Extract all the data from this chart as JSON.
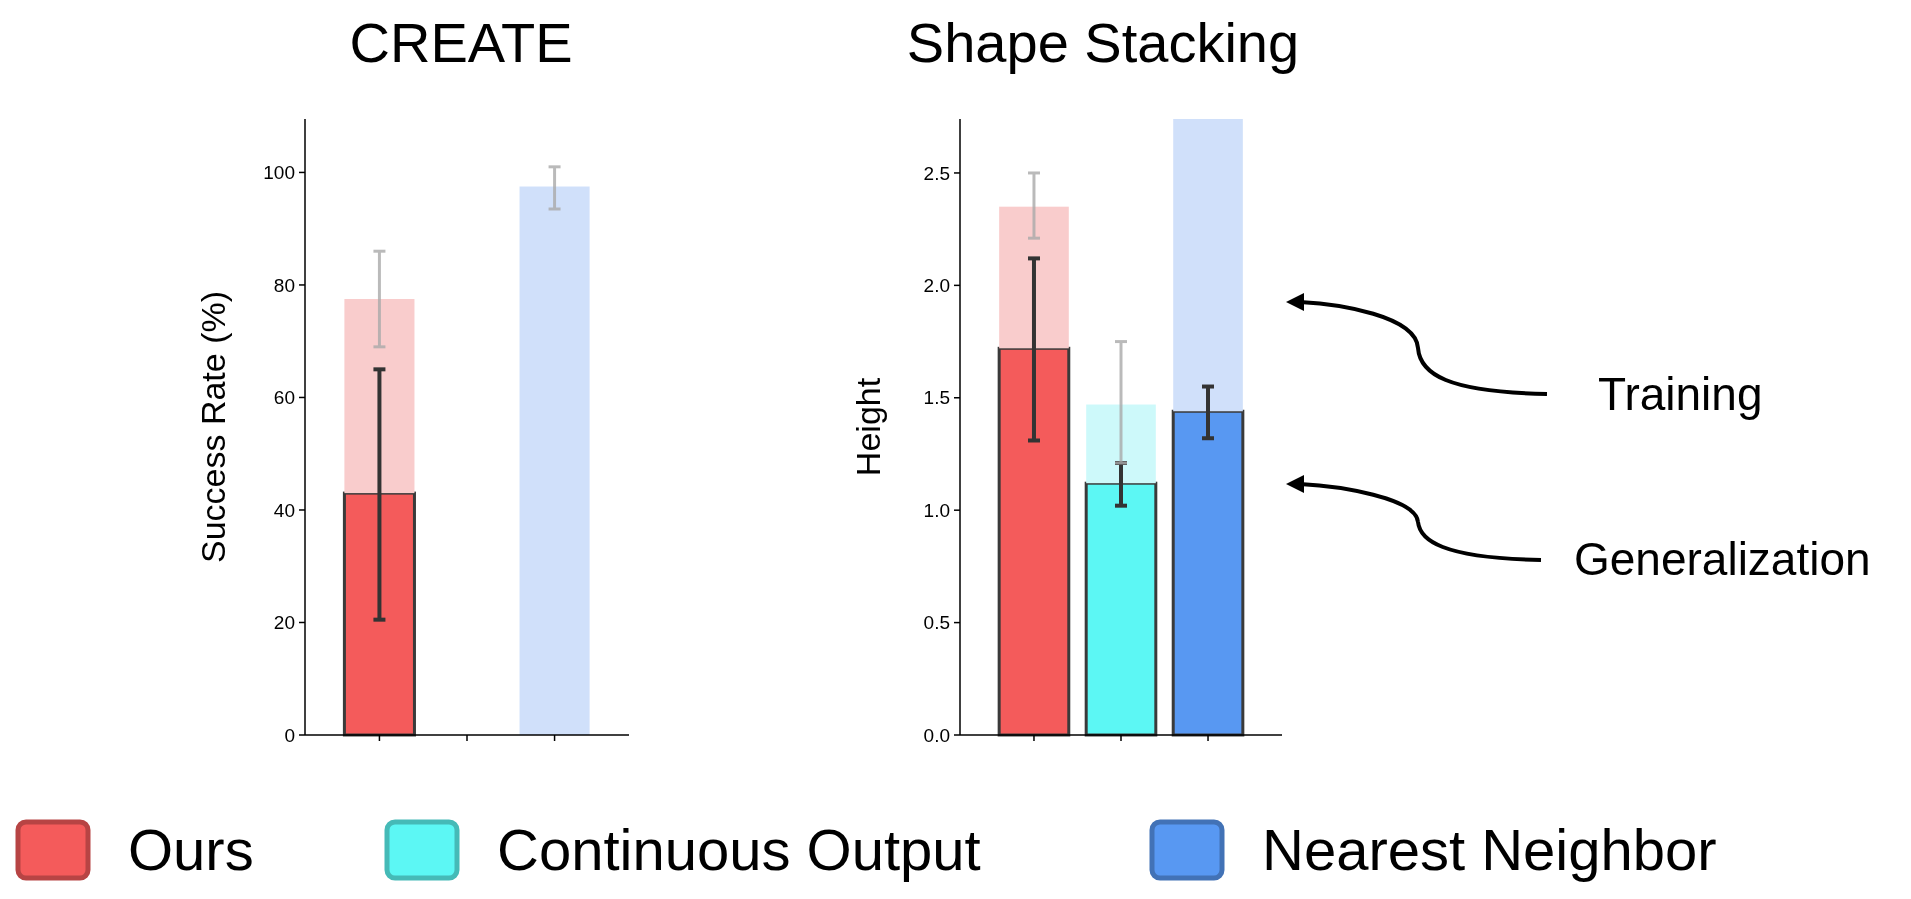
{
  "chart_data": [
    {
      "type": "bar",
      "title": "CREATE",
      "ylabel": "Success Rate (%)",
      "categories": [
        null,
        null,
        null
      ],
      "tick_labels": "y",
      "ylim": [
        0,
        109.5
      ],
      "yticks": [
        0,
        20,
        40,
        60,
        80,
        100
      ],
      "legend": "bottom",
      "stacked": true,
      "series": [
        {
          "name": "Ours",
          "color": "#f45b5b",
          "values": [
            43,
            null,
            null
          ],
          "errors": [
            [
              20.5,
              65
            ],
            null,
            null
          ]
        },
        {
          "name": "Continuous Output",
          "color": "#5cf7f4",
          "values": [
            null,
            0,
            null
          ]
        },
        {
          "name": "Nearest Neighbor",
          "color": "#5898f2",
          "values": [
            null,
            null,
            0
          ]
        },
        {
          "color": "#f9cccc",
          "values": [
            34.5,
            null,
            null
          ],
          "errors": [
            [
              69,
              86
            ],
            null,
            null
          ]
        },
        {
          "color": "#cdf9fa",
          "values": [
            null,
            0,
            null
          ]
        },
        {
          "color": "#d0e0fa",
          "values": [
            null,
            null,
            97.5
          ],
          "errors": [
            null,
            null,
            [
              93.5,
              101
            ]
          ]
        }
      ]
    },
    {
      "type": "bar",
      "title": "Shape Stacking",
      "ylabel": "Height",
      "categories": [
        null,
        null,
        null
      ],
      "tick_labels": "y",
      "ylim": [
        0,
        2.74
      ],
      "yticks": [
        {
          "value": 0,
          "label": "0.0"
        },
        0.5,
        {
          "value": 1,
          "label": "1.0"
        },
        1.5,
        {
          "value": 2,
          "label": "2.0"
        },
        2.5
      ],
      "stacked": true,
      "annotations": [
        "Training",
        "Generalization"
      ],
      "series": [
        {
          "color": "#f45b5b",
          "values": [
            1.72,
            null,
            null
          ],
          "errors": [
            [
              1.31,
              2.12
            ],
            null,
            null
          ]
        },
        {
          "color": "#5cf7f4",
          "values": [
            null,
            1.12,
            null
          ],
          "errors": [
            null,
            [
              1.02,
              1.21
            ],
            null
          ]
        },
        {
          "color": "#5898f2",
          "values": [
            null,
            null,
            1.44
          ],
          "errors": [
            null,
            null,
            [
              1.32,
              1.55
            ]
          ]
        },
        {
          "color": "#f9cccc",
          "values": [
            0.63,
            null,
            null
          ],
          "errors": [
            [
              2.21,
              2.5
            ],
            null,
            null
          ]
        },
        {
          "color": "#cdf9fa",
          "values": [
            null,
            0.35,
            null
          ],
          "errors": [
            null,
            [
              1.21,
              1.75
            ],
            null
          ]
        },
        {
          "color": "#d0e0fa",
          "values": [
            null,
            null,
            1.3
          ]
        }
      ]
    }
  ]
}
